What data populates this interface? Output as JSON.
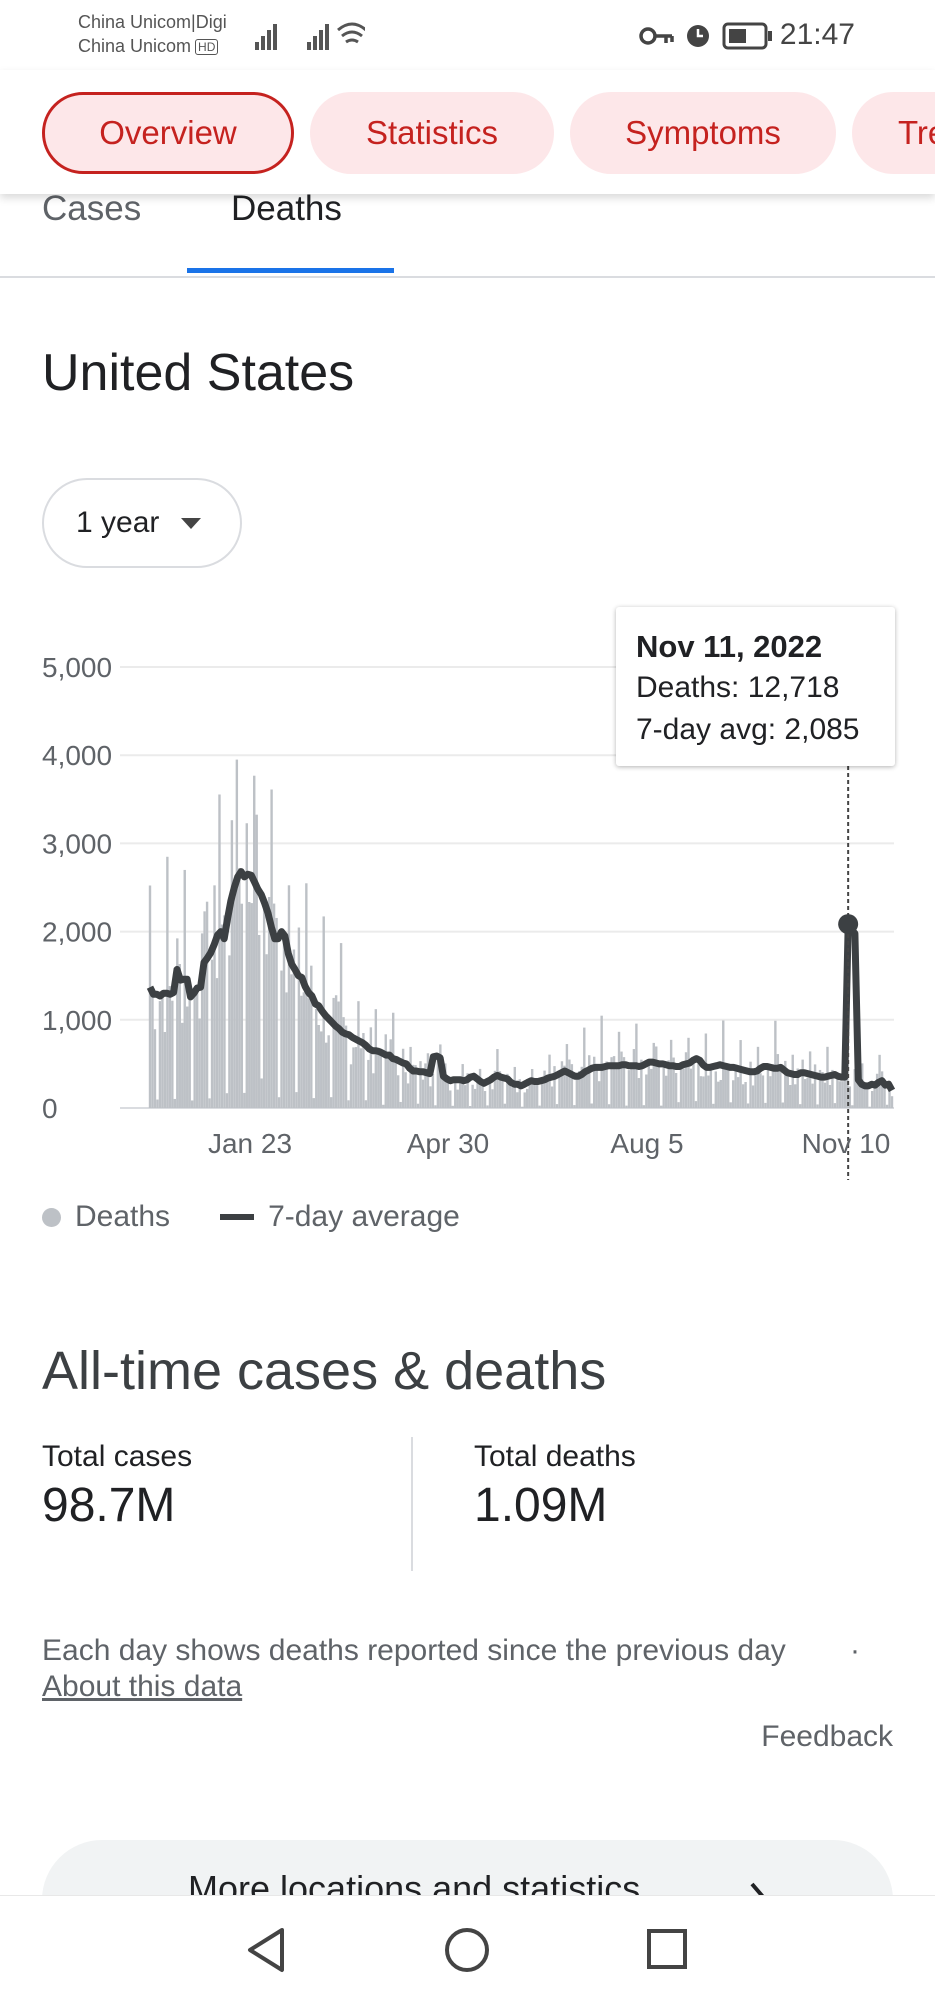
{
  "status_bar": {
    "carrier_1": "China Unicom|Digi",
    "carrier_2": "China Unicom",
    "hd_badge": "HD",
    "time": "21:47"
  },
  "chips": [
    {
      "label": "Overview",
      "active": true
    },
    {
      "label": "Statistics",
      "active": false
    },
    {
      "label": "Symptoms",
      "active": false
    },
    {
      "label": "Tre",
      "active": false
    }
  ],
  "subtabs": {
    "cases": "Cases",
    "deaths": "Deaths",
    "selected": "Deaths"
  },
  "location": "United States",
  "range_selector": {
    "value": "1 year"
  },
  "chart_data": {
    "type": "bar+line",
    "y_ticks": [
      "5,000",
      "4,000",
      "3,000",
      "2,000",
      "1,000",
      "0"
    ],
    "ylim": [
      0,
      5000
    ],
    "x_ticks": [
      "Jan 23",
      "Apr 30",
      "Aug 5",
      "Nov 10"
    ],
    "grid": true,
    "series": [
      {
        "name": "Deaths",
        "kind": "bar",
        "color": "#bdc1c6"
      },
      {
        "name": "7-day average",
        "kind": "line",
        "color": "#3c4043",
        "values": [
          1370,
          1290,
          1290,
          1270,
          1300,
          1300,
          1290,
          1310,
          1570,
          1450,
          1460,
          1460,
          1260,
          1300,
          1360,
          1370,
          1650,
          1700,
          1760,
          1850,
          1960,
          2000,
          1920,
          2150,
          2350,
          2500,
          2620,
          2680,
          2620,
          2650,
          2640,
          2560,
          2480,
          2420,
          2320,
          2210,
          2050,
          1920,
          1920,
          2000,
          1950,
          1750,
          1630,
          1570,
          1500,
          1480,
          1380,
          1310,
          1270,
          1180,
          1160,
          1100,
          1050,
          1010,
          970,
          930,
          900,
          860,
          840,
          830,
          800,
          780,
          760,
          740,
          710,
          670,
          650,
          650,
          640,
          620,
          600,
          600,
          560,
          550,
          530,
          510,
          500,
          450,
          420,
          420,
          410,
          410,
          400,
          390,
          580,
          590,
          570,
          360,
          330,
          310,
          320,
          320,
          320,
          310,
          320,
          350,
          360,
          330,
          300,
          280,
          300,
          320,
          350,
          370,
          350,
          340,
          330,
          290,
          270,
          270,
          250,
          270,
          290,
          310,
          300,
          300,
          310,
          320,
          340,
          350,
          360,
          380,
          400,
          420,
          400,
          380,
          360,
          360,
          380,
          410,
          430,
          450,
          460,
          460,
          460,
          470,
          480,
          480,
          480,
          480,
          490,
          490,
          480,
          480,
          480,
          470,
          480,
          500,
          520,
          520,
          510,
          500,
          500,
          490,
          480,
          480,
          470,
          470,
          490,
          500,
          510,
          540,
          560,
          540,
          490,
          460,
          460,
          470,
          480,
          490,
          480,
          470,
          460,
          460,
          450,
          440,
          430,
          420,
          410,
          410,
          420,
          450,
          470,
          470,
          460,
          450,
          450,
          460,
          430,
          400,
          390,
          380,
          380,
          400,
          400,
          390,
          380,
          370,
          360,
          350,
          350,
          360,
          370,
          380,
          360,
          350,
          350,
          2085,
          2020,
          1980,
          320,
          270,
          250,
          250,
          270,
          260,
          290,
          310,
          260,
          270,
          200
        ]
      }
    ],
    "tooltip": {
      "date": "Nov 11, 2022",
      "deaths": "Deaths: 12,718",
      "avg": "7-day avg: 2,085"
    }
  },
  "legend": {
    "deaths": "Deaths",
    "avg": "7-day average"
  },
  "all_time": {
    "title": "All-time cases & deaths",
    "total_cases_label": "Total cases",
    "total_cases_value": "98.7M",
    "total_deaths_label": "Total deaths",
    "total_deaths_value": "1.09M"
  },
  "note": "Each day shows deaths reported since the previous day",
  "note_sep": "·",
  "about_link": "About this data",
  "feedback": "Feedback",
  "more_button": "More locations and statistics",
  "colors": {
    "accent": "#c5221f",
    "chip_bg": "#fde7e9",
    "tab_indicator": "#1a73e8"
  }
}
